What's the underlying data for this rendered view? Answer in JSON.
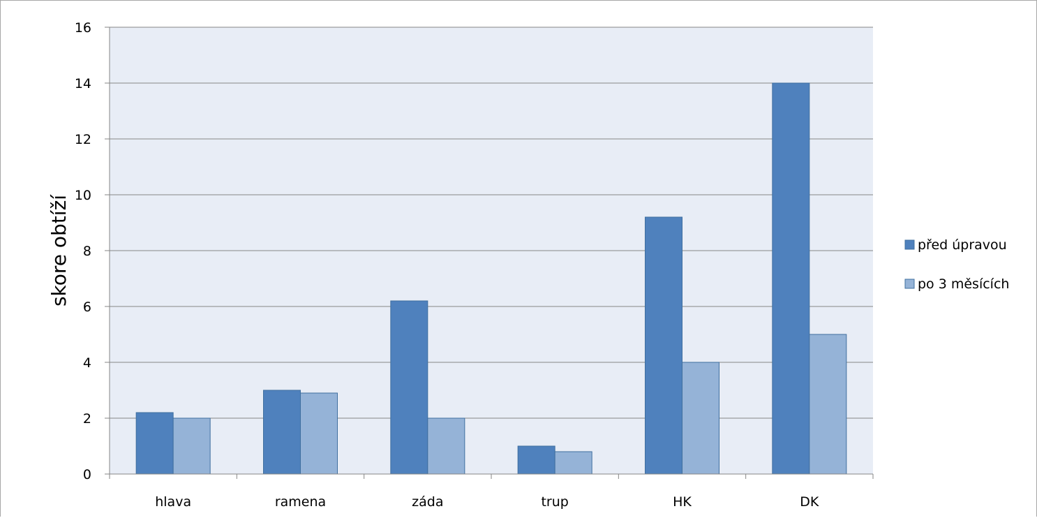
{
  "chart_data": {
    "type": "bar",
    "categories": [
      "hlava",
      "ramena",
      "záda",
      "trup",
      "HK",
      "DK"
    ],
    "series": [
      {
        "name": "před úpravou",
        "values": [
          2.2,
          3.0,
          6.2,
          1.0,
          9.2,
          14.0
        ],
        "color": "#4f81bd"
      },
      {
        "name": "po 3 měsících",
        "values": [
          2.0,
          2.9,
          2.0,
          0.8,
          4.0,
          5.0
        ],
        "color": "#95b3d7"
      }
    ],
    "title": "",
    "xlabel": "",
    "ylabel": "skore obtíží",
    "ylim": [
      0,
      16
    ],
    "yticks": [
      "0",
      "2",
      "4",
      "6",
      "8",
      "10",
      "12",
      "14",
      "16"
    ],
    "grid": true,
    "legend_position": "right",
    "colors": {
      "plot_background": "#e8edf6",
      "gridline": "#868686",
      "bar_border": "#3f6f9f"
    }
  }
}
